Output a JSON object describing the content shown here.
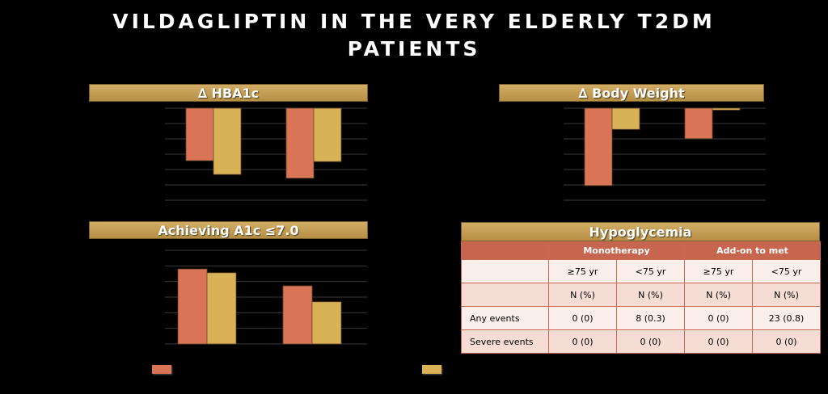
{
  "title_lines": [
    "VILDAGLIPTIN IN THE VERY ELDERLY T2DM",
    "PATIENTS"
  ],
  "colors": {
    "series1": "#d97457",
    "series2": "#d9b257",
    "header_gold": "#c7a15a",
    "table_header": "#c8654f"
  },
  "chart_data": [
    {
      "type": "bar",
      "title": "∆ HBA1c",
      "categories": [
        "",
        ""
      ],
      "series": [
        {
          "values": [
            -0.57,
            -0.76
          ]
        },
        {
          "values": [
            -0.72,
            -0.58
          ]
        }
      ],
      "ylim": [
        -1.0,
        0
      ],
      "grid": true
    },
    {
      "type": "bar",
      "title": "∆ Body Weight",
      "categories": [
        "",
        ""
      ],
      "series": [
        {
          "values": [
            -0.84,
            -0.33
          ]
        },
        {
          "values": [
            -0.23,
            -0.02
          ]
        }
      ],
      "ylim": [
        -1.0,
        0
      ],
      "grid": true
    },
    {
      "type": "bar",
      "title": "Achieving A1c ≤7.0",
      "categories": [
        "",
        ""
      ],
      "series": [
        {
          "values": [
            0.8,
            0.62
          ]
        },
        {
          "values": [
            0.76,
            0.45
          ]
        }
      ],
      "ylim": [
        0,
        1.0
      ],
      "grid": true
    }
  ],
  "hypoglycemia": {
    "title": "Hypoglycemia",
    "groups": [
      "Monotherapy",
      "Add-on to met"
    ],
    "ages": [
      "≥75 yr",
      "<75 yr",
      "≥75 yr",
      "<75 yr"
    ],
    "units": [
      "N (%)",
      "N (%)",
      "N (%)",
      "N (%)"
    ],
    "rows": [
      {
        "label": "Any events",
        "values": [
          "0 (0)",
          "8 (0.3)",
          "0 (0)",
          "23 (0.8)"
        ]
      },
      {
        "label": "Severe events",
        "values": [
          "0 (0)",
          "0 (0)",
          "0 (0)",
          "0 (0)"
        ]
      }
    ]
  }
}
